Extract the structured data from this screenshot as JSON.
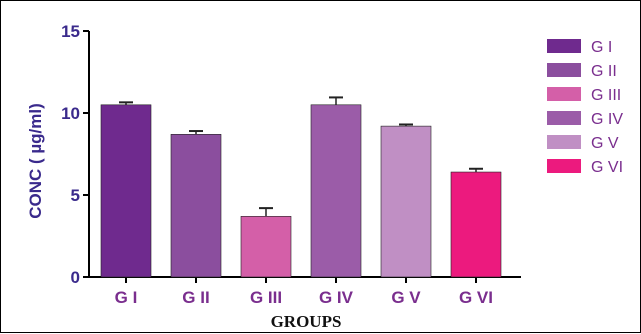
{
  "chart_data": {
    "type": "bar",
    "categories": [
      "G I",
      "G II",
      "G III",
      "G IV",
      "G V",
      "G VI"
    ],
    "values": [
      10.5,
      8.7,
      3.7,
      10.5,
      9.2,
      6.4
    ],
    "errors": [
      0.15,
      0.2,
      0.5,
      0.45,
      0.1,
      0.2
    ],
    "colors": [
      "#6F2A8E",
      "#8B4E9E",
      "#D45FA8",
      "#9B5CA8",
      "#C08FC4",
      "#EC1A7E"
    ],
    "ylabel": "CONC ( µg/ml)",
    "xlabel": "GROUPS",
    "ylim": [
      0,
      15
    ],
    "yticks": [
      0,
      5,
      10,
      15
    ],
    "grid": false,
    "legend_position": "right",
    "label_color": "#3A2A8C"
  }
}
